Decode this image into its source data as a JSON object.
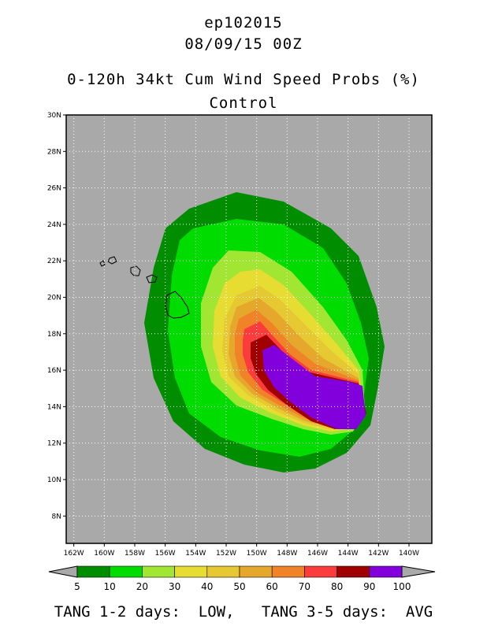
{
  "header": {
    "storm_id": "ep102015",
    "datetime": "08/09/15 00Z",
    "product": "0-120h 34kt Cum Wind Speed Probs (%)",
    "run": "Control"
  },
  "chart_data": {
    "type": "heatmap",
    "title": "0-120h 34kt Cum Wind Speed Probs (%)",
    "subtitle": "Control",
    "lon_range": [
      -162.5,
      -138.5
    ],
    "lat_range": [
      6.5,
      30
    ],
    "lon_ticks": [
      "162W",
      "160W",
      "158W",
      "156W",
      "154W",
      "152W",
      "150W",
      "148W",
      "146W",
      "144W",
      "142W",
      "140W"
    ],
    "lat_ticks": [
      "8N",
      "10N",
      "12N",
      "14N",
      "16N",
      "18N",
      "20N",
      "22N",
      "24N",
      "26N",
      "28N",
      "30N"
    ],
    "ocean_color": "#a9a9a9",
    "bins": [
      {
        "label": "5",
        "color": "#008d00"
      },
      {
        "label": "10",
        "color": "#00dc00"
      },
      {
        "label": "20",
        "color": "#a0e632"
      },
      {
        "label": "30",
        "color": "#e6dc32"
      },
      {
        "label": "40",
        "color": "#e6c832"
      },
      {
        "label": "50",
        "color": "#e6a82c"
      },
      {
        "label": "60",
        "color": "#f08228"
      },
      {
        "label": "70",
        "color": "#fa3c3c"
      },
      {
        "label": "80",
        "color": "#a00000"
      },
      {
        "label": "90",
        "color": "#8200dc"
      }
    ],
    "colorbar_labels": [
      "5",
      "10",
      "20",
      "30",
      "40",
      "50",
      "60",
      "70",
      "80",
      "90",
      "100"
    ]
  },
  "footer": {
    "text": "TANG 1-2 days:  LOW,   TANG 3-5 days:  AVG"
  }
}
